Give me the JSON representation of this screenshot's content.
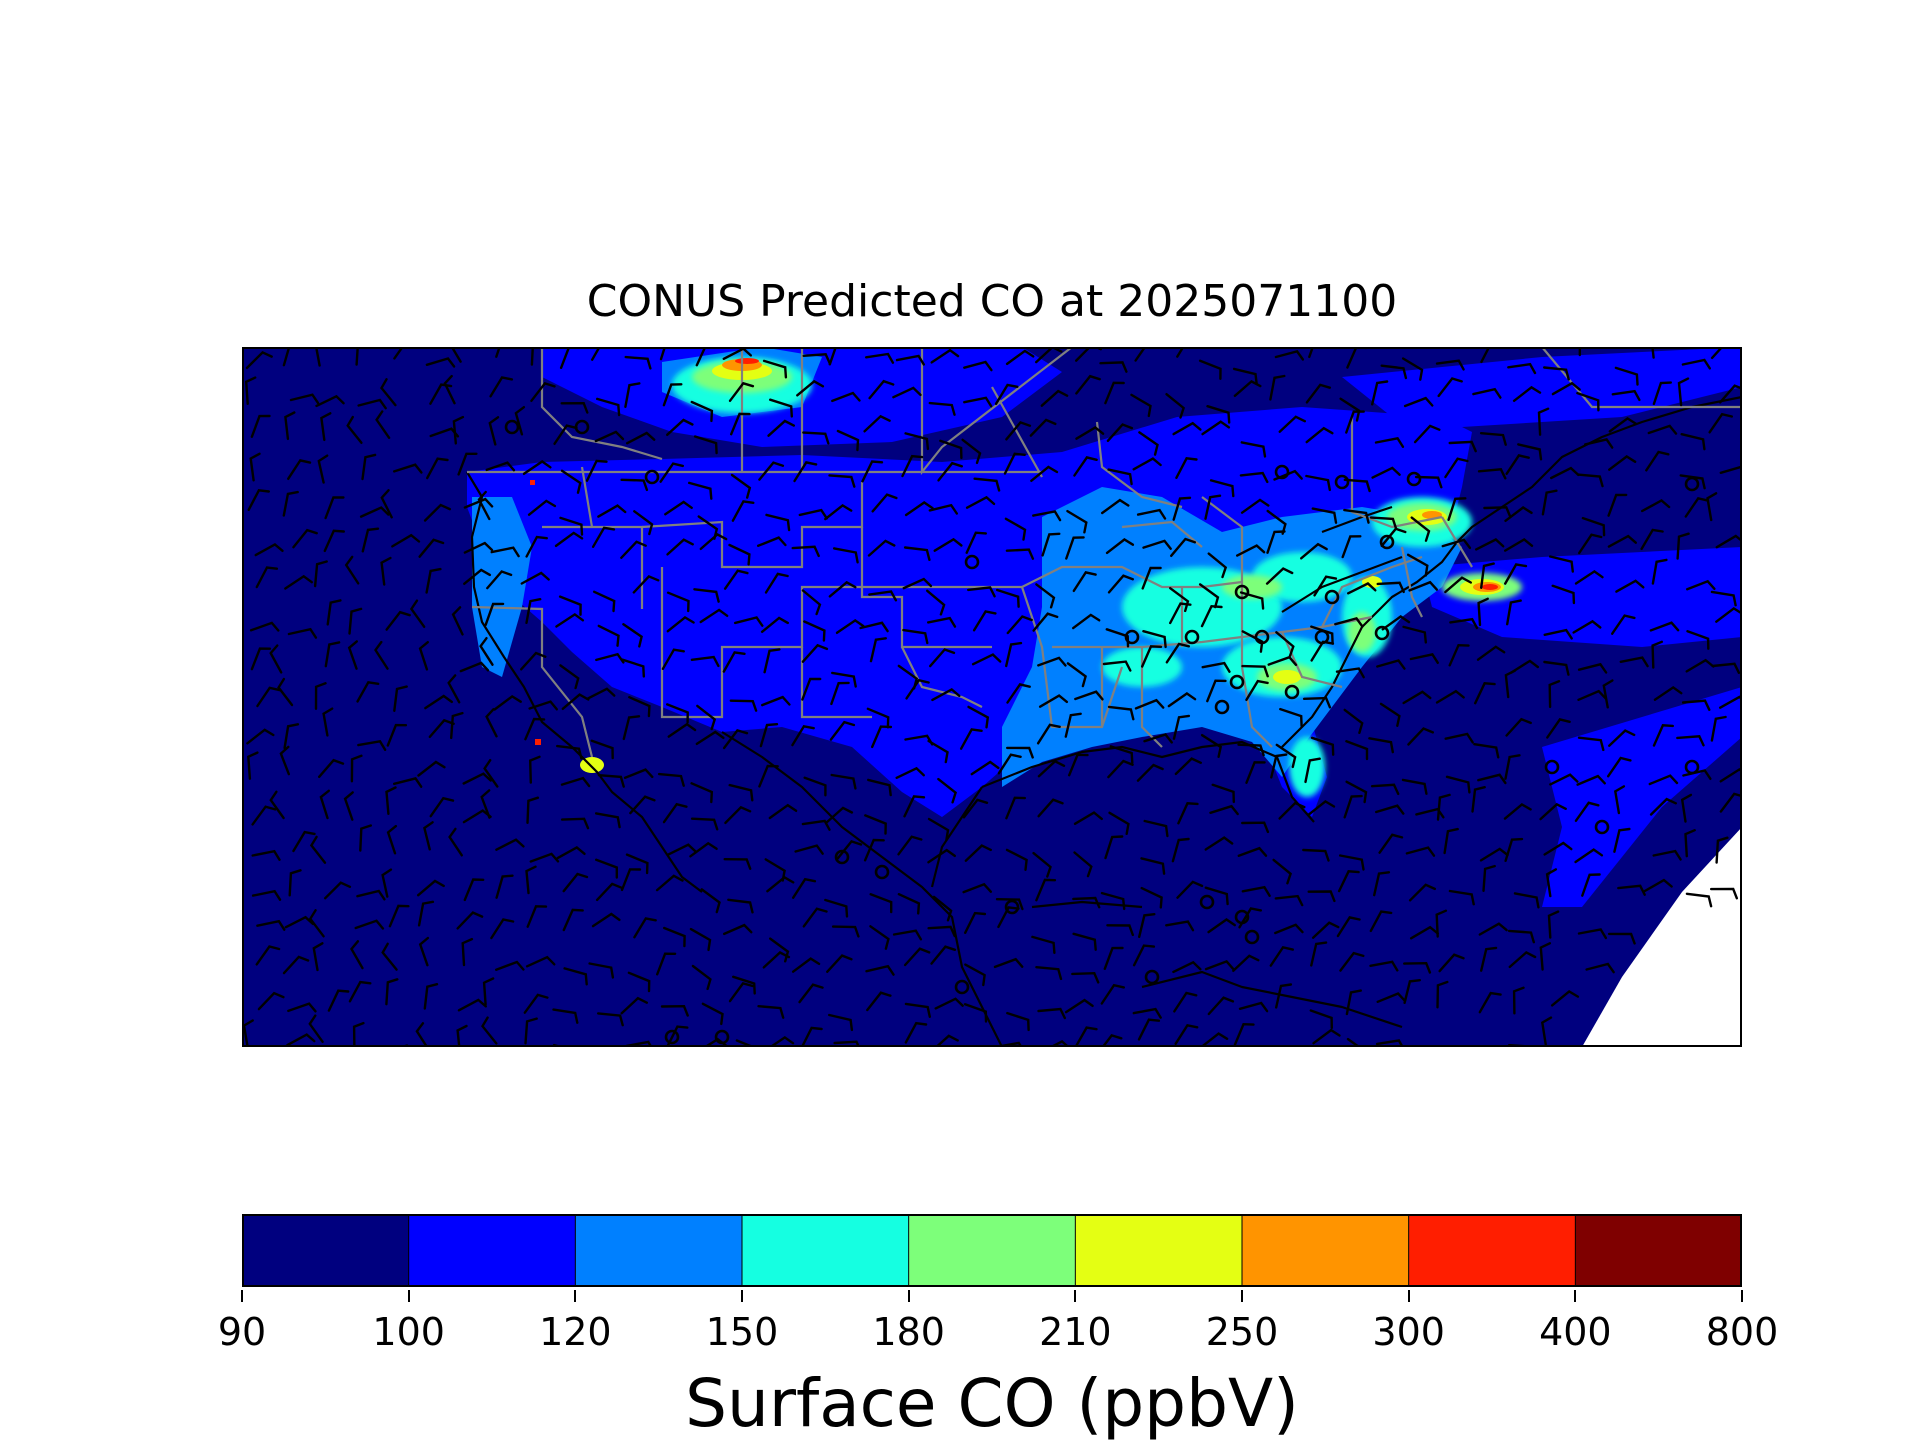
{
  "title": "CONUS Predicted CO at 2025071100",
  "colorbar": {
    "label": "Surface CO (ppbV)",
    "levels": [
      90,
      100,
      120,
      150,
      180,
      210,
      250,
      300,
      400,
      800
    ],
    "tick_labels": [
      "90",
      "100",
      "120",
      "150",
      "180",
      "210",
      "250",
      "300",
      "400",
      "800"
    ],
    "colors": [
      "#00007f",
      "#0000ff",
      "#0080ff",
      "#15ffe1",
      "#7dff7a",
      "#e4ff13",
      "#ff9400",
      "#ff1e00",
      "#7f0000"
    ]
  },
  "map": {
    "region": "CONUS",
    "ocean_color": "#00007f",
    "land_background_color": "#0000ff",
    "state_border_color": "#808080",
    "coastline_color": "#000000",
    "wind_barb_color": "#000000"
  }
}
